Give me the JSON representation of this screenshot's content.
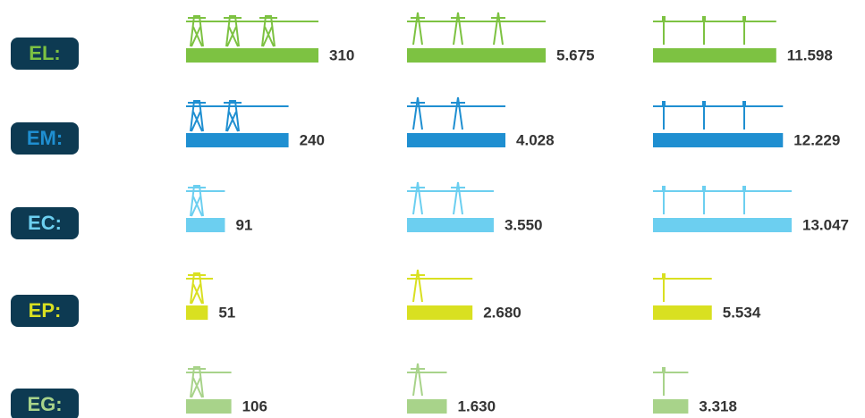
{
  "chart_data": {
    "type": "bar",
    "categories": [
      "EL:",
      "EM:",
      "EC:",
      "EP:",
      "EG:"
    ],
    "colors": [
      "#7dc242",
      "#1f8fd1",
      "#6ccff0",
      "#d9e021",
      "#a8d38a"
    ],
    "series": [
      {
        "values": [
          310,
          240,
          91,
          51,
          106
        ],
        "value_labels": [
          "310",
          "240",
          "91",
          "51",
          "106"
        ]
      },
      {
        "values": [
          5675,
          4028,
          3550,
          2680,
          1630
        ],
        "value_labels": [
          "5.675",
          "4.028",
          "3.550",
          "2.680",
          "1.630"
        ]
      },
      {
        "values": [
          11598,
          12229,
          13047,
          5534,
          3318
        ],
        "value_labels": [
          "11.598",
          "12.229",
          "13.047",
          "5.534",
          "3.318"
        ]
      }
    ]
  }
}
